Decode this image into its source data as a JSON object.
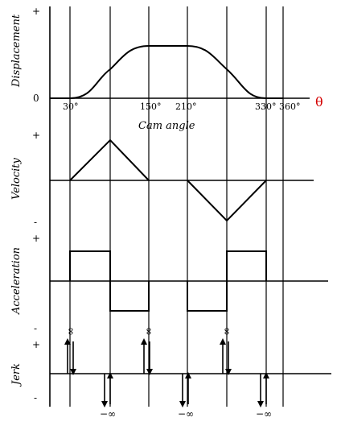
{
  "panels": {
    "displacement": {
      "ylabel": "Displacement",
      "plus": "+",
      "zero": "0"
    },
    "velocity": {
      "ylabel": "Velocity",
      "plus": "+",
      "minus": "-"
    },
    "acceleration": {
      "ylabel": "Acceleration",
      "plus": "+",
      "minus": "-"
    },
    "jerk": {
      "ylabel": "Jerk",
      "plus": "+",
      "minus": "-"
    }
  },
  "xaxis": {
    "label": "Cam angle",
    "theta": "θ",
    "ticks": [
      "30°",
      "150°",
      "210°",
      "330°",
      "360°"
    ],
    "theta_color": "#d40000"
  },
  "jerk_impulses": {
    "plus_infinity": "∞",
    "minus_infinity": "−∞"
  }
}
